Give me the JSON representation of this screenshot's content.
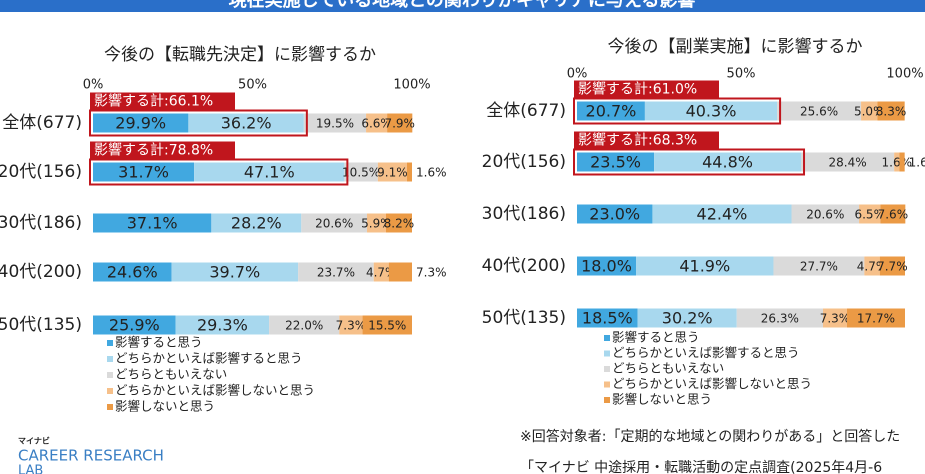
{
  "header": {
    "title": "現在実施している地域との関わりがキャリアに与える影響"
  },
  "chart_data": [
    {
      "type": "bar",
      "orientation": "horizontal",
      "stacked": true,
      "title": "今後の【転職先決定】に影響するか",
      "categories": [
        "全体(677)",
        "20代(156)",
        "30代(186)",
        "40代(200)",
        "50代(135)"
      ],
      "xlim": [
        0,
        100
      ],
      "xticks": [
        {
          "value": 0,
          "label": "0%"
        },
        {
          "value": 50,
          "label": "50%"
        },
        {
          "value": 100,
          "label": "100%"
        }
      ],
      "annotations": [
        "影響する計:66.1%",
        "影響する計:78.8%"
      ],
      "series": [
        {
          "name": "影響すると思う",
          "color": "#41a8e0",
          "values": [
            29.9,
            31.7,
            37.1,
            24.6,
            25.9
          ],
          "value_labels": [
            "29.9%",
            "31.7%",
            "37.1%",
            "24.6%",
            "25.9%"
          ]
        },
        {
          "name": "どちらかといえば影響すると思う",
          "color": "#a8d8ee",
          "values": [
            36.2,
            47.1,
            28.2,
            39.7,
            29.3
          ],
          "value_labels": [
            "36.2%",
            "47.1%",
            "28.2%",
            "39.7%",
            "29.3%"
          ]
        },
        {
          "name": "どちらともいえない",
          "color": "#dadada",
          "values": [
            19.5,
            10.5,
            20.6,
            23.7,
            22.0
          ],
          "value_labels": [
            "19.5%",
            "10.5%",
            "20.6%",
            "23.7%",
            "22.0%"
          ]
        },
        {
          "name": "どちらかといえば影響しないと思う",
          "color": "#f6c08a",
          "values": [
            6.6,
            9.1,
            5.9,
            4.7,
            7.3
          ],
          "value_labels": [
            "6.6%",
            "9.1%",
            "5.9%",
            "4.7%",
            "7.3%"
          ]
        },
        {
          "name": "影響しないと思う",
          "color": "#eb9a45",
          "values": [
            7.9,
            1.6,
            8.2,
            7.3,
            15.5
          ],
          "value_labels": [
            "7.9%",
            "1.6%",
            "8.2%",
            "7.3%",
            "15.5%"
          ]
        }
      ]
    },
    {
      "type": "bar",
      "orientation": "horizontal",
      "stacked": true,
      "title": "今後の【副業実施】に影響するか",
      "categories": [
        "全体(677)",
        "20代(156)",
        "30代(186)",
        "40代(200)",
        "50代(135)"
      ],
      "xlim": [
        0,
        100
      ],
      "xticks": [
        {
          "value": 0,
          "label": "0%"
        },
        {
          "value": 50,
          "label": "50%"
        },
        {
          "value": 100,
          "label": "100%"
        }
      ],
      "annotations": [
        "影響する計:61.0%",
        "影響する計:68.3%"
      ],
      "series": [
        {
          "name": "影響すると思う",
          "color": "#41a8e0",
          "values": [
            20.7,
            23.5,
            23.0,
            18.0,
            18.5
          ],
          "value_labels": [
            "20.7%",
            "23.5%",
            "23.0%",
            "18.0%",
            "18.5%"
          ]
        },
        {
          "name": "どちらかといえば影響すると思う",
          "color": "#a8d8ee",
          "values": [
            40.3,
            44.8,
            42.4,
            41.9,
            30.2
          ],
          "value_labels": [
            "40.3%",
            "44.8%",
            "42.4%",
            "41.9%",
            "30.2%"
          ]
        },
        {
          "name": "どちらともいえない",
          "color": "#dadada",
          "values": [
            25.6,
            28.4,
            20.6,
            27.7,
            26.3
          ],
          "value_labels": [
            "25.6%",
            "28.4%",
            "20.6%",
            "27.7%",
            "26.3%"
          ]
        },
        {
          "name": "どちらかといえば影響しないと思う",
          "color": "#f6c08a",
          "values": [
            5.0,
            1.6,
            6.5,
            4.7,
            7.3
          ],
          "value_labels": [
            "5.0%",
            "1.6%",
            "6.5%",
            "4.7%",
            "7.3%"
          ]
        },
        {
          "name": "影響しないと思う",
          "color": "#eb9a45",
          "values": [
            8.3,
            1.6,
            7.6,
            7.7,
            17.7
          ],
          "value_labels": [
            "8.3%",
            "1.6%",
            "7.6%",
            "7.7%",
            "17.7%"
          ]
        }
      ]
    }
  ],
  "notes": [
    "※回答対象者:「定期的な地域との関わりがある」と回答した",
    "「マイナビ 中途採用・転職活動の定点調査(2025年4月-6"
  ],
  "logo": {
    "brand": "マイナビ",
    "name": "CAREER RESEARCH",
    "sub": "LAB"
  }
}
